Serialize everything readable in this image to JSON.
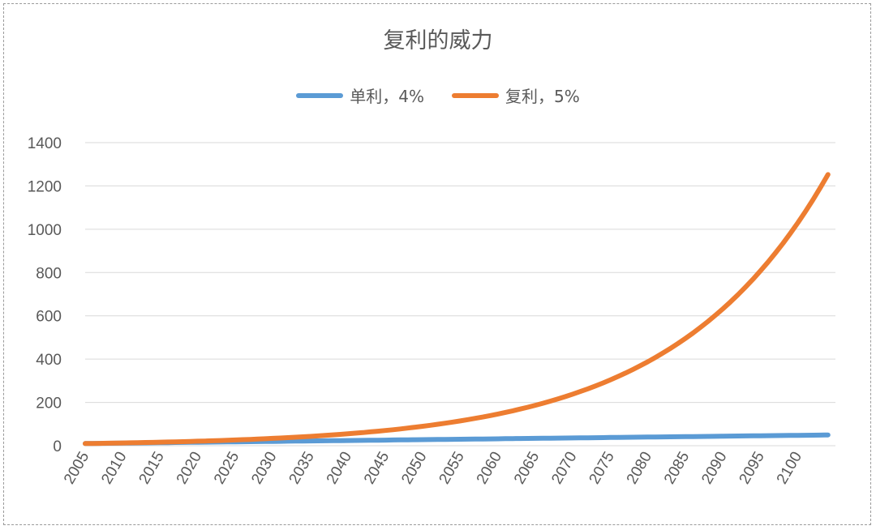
{
  "chart_data": {
    "type": "line",
    "title": "复利的威力",
    "xlabel": "",
    "ylabel": "",
    "ylim": [
      0,
      1400
    ],
    "yticks": [
      0,
      200,
      400,
      600,
      800,
      1000,
      1200,
      1400
    ],
    "xticks": [
      "2005",
      "2010",
      "2015",
      "2020",
      "2025",
      "2030",
      "2035",
      "2040",
      "2045",
      "2050",
      "2055",
      "2060",
      "2065",
      "2070",
      "2075",
      "2080",
      "2085",
      "2090",
      "2095",
      "2100"
    ],
    "x_start": 2005,
    "x_end": 2104,
    "grid": true,
    "legend_position": "top",
    "series": [
      {
        "name": "单利，4%",
        "color": "#5B9BD5",
        "values": [
          10,
          10.4,
          10.8,
          11.2,
          11.6,
          12,
          12.4,
          12.8,
          13.2,
          13.6,
          14,
          14.4,
          14.8,
          15.2,
          15.6,
          16,
          16.4,
          16.8,
          17.2,
          17.6,
          18,
          18.4,
          18.8,
          19.2,
          19.6,
          20,
          20.4,
          20.8,
          21.2,
          21.6,
          22,
          22.4,
          22.8,
          23.2,
          23.6,
          24,
          24.4,
          24.8,
          25.2,
          25.6,
          26,
          26.4,
          26.8,
          27.2,
          27.6,
          28,
          28.4,
          28.8,
          29.2,
          29.6,
          30,
          30.4,
          30.8,
          31.2,
          31.6,
          32,
          32.4,
          32.8,
          33.2,
          33.6,
          34,
          34.4,
          34.8,
          35.2,
          35.6,
          36,
          36.4,
          36.8,
          37.2,
          37.6,
          38,
          38.4,
          38.8,
          39.2,
          39.6,
          40,
          40.4,
          40.8,
          41.2,
          41.6,
          42,
          42.4,
          42.8,
          43.2,
          43.6,
          44,
          44.4,
          44.8,
          45.2,
          45.6,
          46,
          46.4,
          46.8,
          47.2,
          47.6,
          48,
          48.4,
          48.8,
          49.2,
          49.6
        ]
      },
      {
        "name": "复利，5%",
        "color": "#ED7D31",
        "values": [
          10,
          10.5,
          11,
          11.6,
          12.2,
          12.8,
          13.4,
          14.1,
          14.8,
          15.5,
          16.3,
          17.1,
          18,
          18.9,
          19.8,
          20.8,
          21.8,
          22.9,
          24.1,
          25.3,
          26.5,
          27.9,
          29.3,
          30.7,
          32.3,
          33.9,
          35.6,
          37.3,
          39.2,
          41.2,
          43.2,
          45.4,
          47.6,
          50,
          52.5,
          55.2,
          57.9,
          60.8,
          63.9,
          67,
          70.4,
          73.9,
          77.6,
          81.5,
          85.6,
          89.9,
          94.3,
          99.1,
          104,
          109.2,
          114.7,
          120.4,
          126.4,
          132.7,
          139.4,
          146.4,
          153.7,
          161.4,
          169.4,
          177.9,
          186.8,
          196.1,
          205.9,
          216.2,
          227,
          238.4,
          250.3,
          262.8,
          276,
          289.8,
          304.3,
          319.5,
          335.5,
          352.2,
          369.9,
          388.3,
          407.8,
          428.2,
          449.6,
          472,
          495.6,
          520.4,
          546.4,
          573.8,
          602.5,
          632.6,
          664.2,
          697.4,
          732.3,
          768.9,
          807.4,
          847.7,
          890.1,
          934.6,
          981.4,
          1030.4,
          1082,
          1136.1,
          1192.9,
          1252.5
        ]
      }
    ]
  }
}
